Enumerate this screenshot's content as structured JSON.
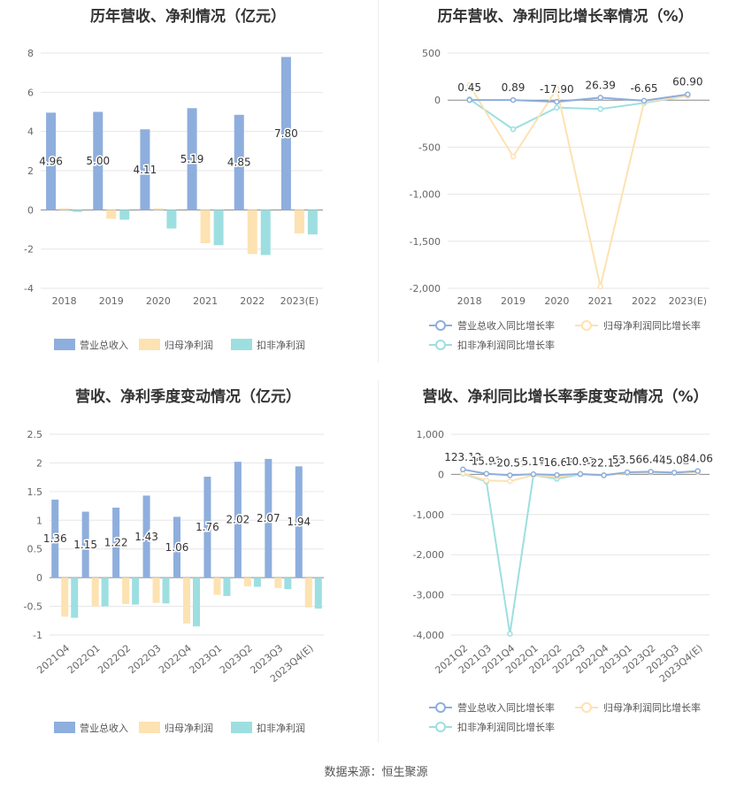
{
  "chart_data": [
    {
      "type": "bar",
      "title": "历年营收、净利情况（亿元）",
      "categories": [
        "2018",
        "2019",
        "2020",
        "2021",
        "2022",
        "2023(E)"
      ],
      "ylim": [
        -4,
        8
      ],
      "yticks": [
        -4,
        -2,
        0,
        2,
        4,
        6,
        8
      ],
      "grid": true,
      "legend_position": "bottom",
      "series": [
        {
          "name": "营业总收入",
          "color": "#8eaedd",
          "values": [
            4.96,
            5.0,
            4.11,
            5.19,
            4.85,
            7.8
          ],
          "labels": [
            "4.96",
            "5.00",
            "4.11",
            "5.19",
            "4.85",
            "7.80"
          ]
        },
        {
          "name": "归母净利润",
          "color": "#fde2b2",
          "values": [
            0.08,
            -0.45,
            0.08,
            -1.7,
            -2.25,
            -1.2
          ]
        },
        {
          "name": "扣非净利润",
          "color": "#9ddfe0",
          "values": [
            -0.1,
            -0.5,
            -0.95,
            -1.8,
            -2.3,
            -1.25
          ]
        }
      ]
    },
    {
      "type": "line",
      "title": "历年营收、净利同比增长率情况（%）",
      "categories": [
        "2018",
        "2019",
        "2020",
        "2021",
        "2022",
        "2023(E)"
      ],
      "ylim": [
        -2000,
        500
      ],
      "yticks": [
        -2000,
        -1500,
        -1000,
        -500,
        0,
        500
      ],
      "ytick_labels": [
        "-2,000",
        "-1,500",
        "-1,000",
        "-500",
        "0",
        "500"
      ],
      "grid": true,
      "legend_position": "bottom",
      "series": [
        {
          "name": "营业总收入同比增长率",
          "color": "#8eaedd",
          "values": [
            0.45,
            0.89,
            -17.9,
            26.39,
            -6.65,
            60.9
          ],
          "labels": [
            "0.45",
            "0.89",
            "-17.90",
            "26.39",
            "-6.65",
            "60.90"
          ]
        },
        {
          "name": "归母净利润同比增长率",
          "color": "#fde2b2",
          "values": [
            160,
            -600,
            120,
            -1980,
            -20,
            45
          ]
        },
        {
          "name": "扣非净利润同比增长率",
          "color": "#9ddfe0",
          "values": [
            10,
            -310,
            -80,
            -95,
            -30,
            45
          ]
        }
      ]
    },
    {
      "type": "bar",
      "title": "营收、净利季度变动情况（亿元）",
      "categories": [
        "2021Q4",
        "2022Q1",
        "2022Q2",
        "2022Q3",
        "2022Q4",
        "2023Q1",
        "2023Q2",
        "2023Q3",
        "2023Q4(E)"
      ],
      "ylim": [
        -1,
        2.5
      ],
      "yticks": [
        -1,
        -0.5,
        0,
        0.5,
        1,
        1.5,
        2,
        2.5
      ],
      "grid": true,
      "legend_position": "bottom",
      "series": [
        {
          "name": "营业总收入",
          "color": "#8eaedd",
          "values": [
            1.36,
            1.15,
            1.22,
            1.43,
            1.06,
            1.76,
            2.02,
            2.07,
            1.94
          ],
          "labels": [
            "1.36",
            "1.15",
            "1.22",
            "1.43",
            "1.06",
            "1.76",
            "2.02",
            "2.07",
            "1.94"
          ]
        },
        {
          "name": "归母净利润",
          "color": "#fde2b2",
          "values": [
            -0.68,
            -0.5,
            -0.46,
            -0.44,
            -0.8,
            -0.3,
            -0.15,
            -0.18,
            -0.52
          ]
        },
        {
          "name": "扣非净利润",
          "color": "#9ddfe0",
          "values": [
            -0.7,
            -0.5,
            -0.47,
            -0.45,
            -0.85,
            -0.32,
            -0.16,
            -0.2,
            -0.54
          ]
        }
      ]
    },
    {
      "type": "line",
      "title": "营收、净利同比增长率季度变动情况（%）",
      "categories": [
        "2021Q2",
        "2021Q3",
        "2021Q4",
        "2022Q1",
        "2022Q2",
        "2022Q3",
        "2022Q4",
        "2023Q1",
        "2023Q2",
        "2023Q3",
        "2023Q4(E)"
      ],
      "ylim": [
        -4000,
        1000
      ],
      "yticks": [
        -4000,
        -3000,
        -2000,
        -1000,
        0,
        1000
      ],
      "ytick_labels": [
        "-4,000",
        "-3,000",
        "-2,000",
        "-1,000",
        "0",
        "1,000"
      ],
      "grid": true,
      "legend_position": "bottom",
      "series": [
        {
          "name": "营业总收入同比增长率",
          "color": "#8eaedd",
          "values": [
            123.12,
            15.91,
            -20.59,
            5.18,
            -16.63,
            10.97,
            -22.15,
            53.51,
            66.42,
            45.02,
            84.06
          ],
          "labels": [
            "123.12",
            "15.91",
            "-20.59",
            "5.18",
            "-16.63",
            "10.97",
            "-22.15",
            "53.51",
            "66.42",
            "45.02",
            "84.06"
          ]
        },
        {
          "name": "归母净利润同比增长率",
          "color": "#fde2b2",
          "values": [
            30,
            -150,
            -170,
            -20,
            -60,
            10,
            -20,
            30,
            50,
            40,
            60
          ]
        },
        {
          "name": "扣非净利润同比增长率",
          "color": "#9ddfe0",
          "values": [
            20,
            -180,
            -3970,
            -20,
            -110,
            0,
            -20,
            30,
            50,
            40,
            60
          ]
        }
      ]
    }
  ],
  "footer": {
    "source": "数据来源：恒生聚源"
  }
}
